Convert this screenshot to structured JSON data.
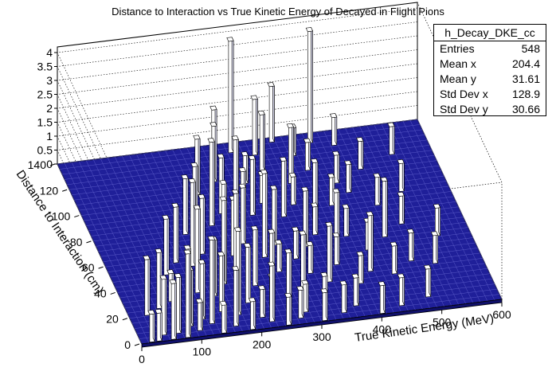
{
  "chart_data": {
    "type": "lego3d",
    "title": "Distance to Interaction vs True Kinetic Energy of Decayed in Flight Pions",
    "xlabel": "True Kinetic Energy (MeV)",
    "ylabel": "Distance to Interaction (cm)",
    "xlim": [
      0,
      600
    ],
    "ylim": [
      0,
      140
    ],
    "zlim": [
      0,
      4.2
    ],
    "x_ticks": [
      "0",
      "100",
      "200",
      "300",
      "400",
      "500",
      "600"
    ],
    "y_ticks": [
      "0",
      "20",
      "40",
      "60",
      "80",
      "100",
      "120",
      "140"
    ],
    "z_ticks": [
      "0",
      "0.5",
      "1",
      "1.5",
      "2",
      "2.5",
      "3",
      "3.5",
      "4"
    ],
    "bin_width_x": 12,
    "bin_width_y": 4,
    "bins": [
      {
        "x": 18,
        "y": 2,
        "z": 1
      },
      {
        "x": 30,
        "y": 2,
        "z": 1
      },
      {
        "x": 42,
        "y": 6,
        "z": 2
      },
      {
        "x": 54,
        "y": 2,
        "z": 2
      },
      {
        "x": 66,
        "y": 6,
        "z": 2
      },
      {
        "x": 78,
        "y": 2,
        "z": 3
      },
      {
        "x": 90,
        "y": 10,
        "z": 2
      },
      {
        "x": 102,
        "y": 6,
        "z": 1
      },
      {
        "x": 114,
        "y": 14,
        "z": 2
      },
      {
        "x": 126,
        "y": 10,
        "z": 3
      },
      {
        "x": 138,
        "y": 2,
        "z": 1
      },
      {
        "x": 150,
        "y": 18,
        "z": 2
      },
      {
        "x": 162,
        "y": 6,
        "z": 2
      },
      {
        "x": 174,
        "y": 14,
        "z": 3
      },
      {
        "x": 186,
        "y": 2,
        "z": 1
      },
      {
        "x": 198,
        "y": 22,
        "z": 2
      },
      {
        "x": 210,
        "y": 10,
        "z": 1
      },
      {
        "x": 222,
        "y": 6,
        "z": 2
      },
      {
        "x": 234,
        "y": 18,
        "z": 1
      },
      {
        "x": 246,
        "y": 2,
        "z": 1
      },
      {
        "x": 258,
        "y": 14,
        "z": 2
      },
      {
        "x": 270,
        "y": 6,
        "z": 1
      },
      {
        "x": 282,
        "y": 10,
        "z": 1
      },
      {
        "x": 306,
        "y": 2,
        "z": 1
      },
      {
        "x": 318,
        "y": 14,
        "z": 1
      },
      {
        "x": 342,
        "y": 6,
        "z": 1
      },
      {
        "x": 366,
        "y": 10,
        "z": 1
      },
      {
        "x": 402,
        "y": 2,
        "z": 1
      },
      {
        "x": 438,
        "y": 6,
        "z": 1
      },
      {
        "x": 486,
        "y": 10,
        "z": 1
      },
      {
        "x": 30,
        "y": 22,
        "z": 2
      },
      {
        "x": 54,
        "y": 26,
        "z": 2
      },
      {
        "x": 78,
        "y": 30,
        "z": 1
      },
      {
        "x": 102,
        "y": 26,
        "z": 2
      },
      {
        "x": 126,
        "y": 34,
        "z": 3
      },
      {
        "x": 150,
        "y": 30,
        "z": 2
      },
      {
        "x": 174,
        "y": 38,
        "z": 3
      },
      {
        "x": 198,
        "y": 42,
        "z": 3
      },
      {
        "x": 222,
        "y": 34,
        "z": 2
      },
      {
        "x": 246,
        "y": 30,
        "z": 2
      },
      {
        "x": 270,
        "y": 42,
        "z": 1
      },
      {
        "x": 294,
        "y": 26,
        "z": 2
      },
      {
        "x": 318,
        "y": 38,
        "z": 1
      },
      {
        "x": 342,
        "y": 30,
        "z": 2
      },
      {
        "x": 366,
        "y": 42,
        "z": 1
      },
      {
        "x": 390,
        "y": 26,
        "z": 1
      },
      {
        "x": 414,
        "y": 34,
        "z": 2
      },
      {
        "x": 450,
        "y": 30,
        "z": 1
      },
      {
        "x": 486,
        "y": 38,
        "z": 1
      },
      {
        "x": 522,
        "y": 34,
        "z": 1
      },
      {
        "x": 90,
        "y": 50,
        "z": 2
      },
      {
        "x": 114,
        "y": 58,
        "z": 2
      },
      {
        "x": 138,
        "y": 54,
        "z": 3
      },
      {
        "x": 162,
        "y": 62,
        "z": 2
      },
      {
        "x": 186,
        "y": 50,
        "z": 3
      },
      {
        "x": 210,
        "y": 58,
        "z": 2
      },
      {
        "x": 234,
        "y": 66,
        "z": 2
      },
      {
        "x": 258,
        "y": 54,
        "z": 3
      },
      {
        "x": 282,
        "y": 62,
        "z": 2
      },
      {
        "x": 306,
        "y": 50,
        "z": 1
      },
      {
        "x": 330,
        "y": 58,
        "z": 2
      },
      {
        "x": 354,
        "y": 66,
        "z": 1
      },
      {
        "x": 378,
        "y": 54,
        "z": 2
      },
      {
        "x": 402,
        "y": 62,
        "z": 1
      },
      {
        "x": 426,
        "y": 50,
        "z": 1
      },
      {
        "x": 462,
        "y": 58,
        "z": 2
      },
      {
        "x": 498,
        "y": 66,
        "z": 1
      },
      {
        "x": 546,
        "y": 54,
        "z": 1
      },
      {
        "x": 150,
        "y": 78,
        "z": 2
      },
      {
        "x": 174,
        "y": 86,
        "z": 2
      },
      {
        "x": 198,
        "y": 82,
        "z": 3
      },
      {
        "x": 222,
        "y": 90,
        "z": 2
      },
      {
        "x": 246,
        "y": 78,
        "z": 2
      },
      {
        "x": 270,
        "y": 86,
        "z": 2
      },
      {
        "x": 294,
        "y": 94,
        "z": 1
      },
      {
        "x": 318,
        "y": 82,
        "z": 2
      },
      {
        "x": 342,
        "y": 90,
        "z": 1
      },
      {
        "x": 366,
        "y": 78,
        "z": 2
      },
      {
        "x": 402,
        "y": 86,
        "z": 1
      },
      {
        "x": 438,
        "y": 94,
        "z": 1
      },
      {
        "x": 474,
        "y": 82,
        "z": 1
      },
      {
        "x": 522,
        "y": 90,
        "z": 1
      },
      {
        "x": 198,
        "y": 106,
        "z": 2
      },
      {
        "x": 234,
        "y": 114,
        "z": 2
      },
      {
        "x": 258,
        "y": 102,
        "z": 2
      },
      {
        "x": 282,
        "y": 110,
        "z": 1
      },
      {
        "x": 318,
        "y": 118,
        "z": 2
      },
      {
        "x": 354,
        "y": 106,
        "z": 2
      },
      {
        "x": 390,
        "y": 114,
        "z": 1
      },
      {
        "x": 426,
        "y": 102,
        "z": 1
      },
      {
        "x": 474,
        "y": 110,
        "z": 1
      },
      {
        "x": 534,
        "y": 118,
        "z": 1
      },
      {
        "x": 246,
        "y": 126,
        "z": 2
      },
      {
        "x": 282,
        "y": 134,
        "z": 4
      },
      {
        "x": 318,
        "y": 130,
        "z": 2
      },
      {
        "x": 354,
        "y": 138,
        "z": 2
      },
      {
        "x": 378,
        "y": 126,
        "z": 1
      },
      {
        "x": 414,
        "y": 134,
        "z": 4
      },
      {
        "x": 450,
        "y": 130,
        "z": 1
      }
    ],
    "stats": {
      "name": "h_Decay_DKE_cc",
      "rows": [
        {
          "label": "Entries",
          "value": "548"
        },
        {
          "label": "Mean x",
          "value": "204.4"
        },
        {
          "label": "Mean y",
          "value": "31.61"
        },
        {
          "label": "Std Dev x",
          "value": "128.9"
        },
        {
          "label": "Std Dev y",
          "value": "30.66"
        }
      ]
    },
    "colors": {
      "grid_fill": "#1f1f99",
      "bar_top": "#ffffff",
      "bar_side": "#d6d6ea",
      "bar_edge": "#000000"
    }
  }
}
